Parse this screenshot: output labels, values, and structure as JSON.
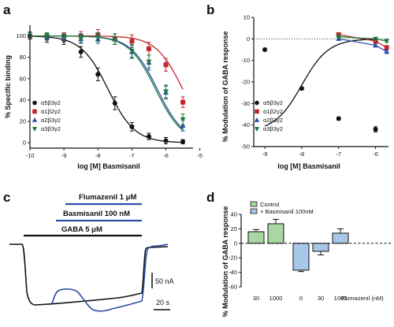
{
  "panels": {
    "a": {
      "letter": "a",
      "chart_data": {
        "type": "scatter",
        "title": "",
        "xlabel": "log [M] Basmisanil",
        "ylabel": "% Specific binding",
        "xlim": [
          -10,
          -5.2
        ],
        "ylim": [
          -5,
          110
        ],
        "x_ticks": [
          "-10",
          "-9",
          "-8",
          "-7",
          "-6",
          "-5"
        ],
        "y_ticks": [
          "0",
          "20",
          "40",
          "60",
          "80",
          "100"
        ],
        "legend_position": "bottom-left",
        "series": [
          {
            "name": "α5β3γ2",
            "color": "#111111",
            "marker": "circle",
            "fit": {
              "top": 100,
              "bottom": 0,
              "logIC50": -7.7,
              "hill": -1.1
            },
            "x": [
              -10,
              -9.5,
              -9,
              -8.5,
              -8,
              -7.5,
              -7,
              -6.5,
              -6,
              -5.5
            ],
            "y": [
              100,
              98,
              96,
              85,
              64,
              37,
              15,
              6,
              2,
              1
            ],
            "err": [
              3,
              4,
              4,
              5,
              6,
              6,
              4,
              3,
              3,
              2
            ]
          },
          {
            "name": "α1β2γ2",
            "color": "#c0272d",
            "marker": "square",
            "fit": {
              "top": 100,
              "bottom": 0,
              "logIC50": -5.5,
              "hill": -1.1
            },
            "x": [
              -10,
              -9.5,
              -9,
              -8.5,
              -8,
              -7.5,
              -7,
              -6.5,
              -6,
              -5.5
            ],
            "y": [
              100,
              100,
              100,
              100,
              101,
              97,
              95,
              88,
              73,
              38
            ],
            "err": [
              3,
              3,
              3,
              4,
              5,
              5,
              6,
              6,
              6,
              5
            ]
          },
          {
            "name": "α2β3γ2",
            "color": "#2f4ea8",
            "marker": "triangle-up",
            "fit": {
              "top": 100,
              "bottom": 0,
              "logIC50": -6.25,
              "hill": -1.1
            },
            "x": [
              -10,
              -9.5,
              -9,
              -8.5,
              -8,
              -7.5,
              -7,
              -6.5,
              -6,
              -5.5
            ],
            "y": [
              101,
              99,
              98,
              97,
              97,
              97,
              85,
              75,
              47,
              16
            ],
            "err": [
              3,
              3,
              3,
              4,
              4,
              5,
              6,
              7,
              6,
              5
            ]
          },
          {
            "name": "α3β3γ2",
            "color": "#1e7a3c",
            "marker": "triangle-down",
            "fit": {
              "top": 100,
              "bottom": 0,
              "logIC50": -6.3,
              "hill": -1.1
            },
            "x": [
              -10,
              -9.5,
              -9,
              -8.5,
              -8,
              -7.5,
              -7,
              -6.5,
              -6,
              -5.5
            ],
            "y": [
              100,
              100,
              99,
              98,
              99,
              97,
              86,
              76,
              48,
              22
            ],
            "err": [
              3,
              3,
              3,
              4,
              4,
              5,
              6,
              6,
              6,
              5
            ]
          }
        ]
      }
    },
    "b": {
      "letter": "b",
      "chart_data": {
        "type": "scatter",
        "title": "",
        "xlabel": "log [M] Basmisanil",
        "ylabel": "% Modulation of GABA response",
        "xlim": [
          -9.3,
          -5.65
        ],
        "ylim": [
          -50,
          10
        ],
        "x_ticks": [
          "-9",
          "-8",
          "-7",
          "-6"
        ],
        "y_ticks": [
          "10",
          "0",
          "-10",
          "-20",
          "-30",
          "-40",
          "-50"
        ],
        "zero_line": "dotted",
        "legend_position": "bottom-left",
        "series": [
          {
            "name": "α5β3γ2",
            "color": "#111111",
            "marker": "circle",
            "fit": {
              "top": 0,
              "bottom": -43,
              "logIC50": -8.0,
              "hill": 1.2
            },
            "x": [
              -9,
              -8,
              -7,
              -6
            ],
            "y": [
              -5,
              -23,
              -37,
              -42
            ],
            "err": [
              0.6,
              0.6,
              0.7,
              1.2
            ]
          },
          {
            "name": "α1β2γ2",
            "color": "#c0272d",
            "marker": "square",
            "x": [
              -7,
              -6,
              -5.7
            ],
            "y": [
              2,
              -1,
              -4
            ],
            "err": [
              0.6,
              0.8,
              0.8
            ]
          },
          {
            "name": "α2β3γ2",
            "color": "#2f4ea8",
            "marker": "triangle-up",
            "x": [
              -7,
              -6,
              -5.7
            ],
            "y": [
              0,
              -3,
              -6
            ],
            "err": [
              0.6,
              0.8,
              0.8
            ]
          },
          {
            "name": "α3β3γ2",
            "color": "#1e7a3c",
            "marker": "triangle-down",
            "x": [
              -7,
              -6,
              -5.7
            ],
            "y": [
              1,
              0,
              -1
            ],
            "err": [
              0.5,
              0.6,
              0.6
            ]
          }
        ]
      }
    },
    "c": {
      "letter": "c",
      "bars": [
        {
          "label": "Flumazenil 1 μM",
          "color": "#2f4ea8"
        },
        {
          "label": "Basmisanil 100 nM",
          "color": "#2f4ea8"
        },
        {
          "label": "GABA 5 μM",
          "color": "#111111"
        }
      ],
      "scale_current": "50 nA",
      "scale_time": "20 s",
      "traces": [
        {
          "name": "control",
          "color": "#111111"
        },
        {
          "name": "basmisanil",
          "color": "#2f4ea8"
        }
      ]
    },
    "d": {
      "letter": "d",
      "chart_data": {
        "type": "bar",
        "title": "",
        "xlabel": "",
        "ylabel": "% Modulation of GABA response",
        "ylim": [
          -60,
          40
        ],
        "y_ticks": [
          "40",
          "20",
          "0",
          "-20",
          "-40",
          "-60"
        ],
        "zero_line": "dashed",
        "legend_position": "top",
        "categories": [
          "30",
          "1000",
          "0",
          "30",
          "1000"
        ],
        "x_suffix": "Flumazenil (nM)",
        "series": [
          {
            "name": "Control",
            "color": "#a9d6a4",
            "positions": [
              0,
              1
            ],
            "values": [
              16,
              27
            ],
            "err": [
              3,
              6
            ]
          },
          {
            "name": "+ Basmisanil 100nM",
            "color": "#a7c7ea",
            "positions": [
              2,
              3,
              4
            ],
            "values": [
              -37,
              -11,
              14
            ],
            "err": [
              2,
              5,
              6
            ]
          }
        ]
      }
    }
  }
}
